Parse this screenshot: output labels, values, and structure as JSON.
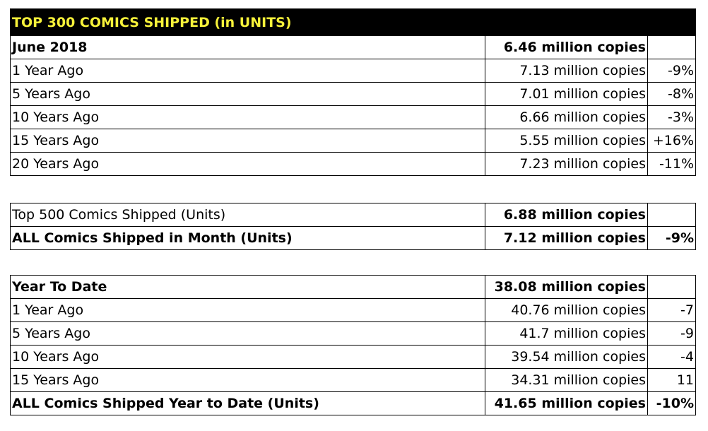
{
  "main_table": {
    "title": "TOP 300 COMICS SHIPPED (in UNITS)",
    "rows": [
      {
        "label": "June 2018",
        "value": "6.46 million copies",
        "change": ""
      },
      {
        "label": "1 Year Ago",
        "value": "7.13 million copies",
        "change": "-9%"
      },
      {
        "label": "5 Years Ago",
        "value": "7.01 million copies",
        "change": "-8%"
      },
      {
        "label": "10 Years Ago",
        "value": "6.66 million copies",
        "change": "-3%"
      },
      {
        "label": "15 Years Ago",
        "value": "5.55 million copies",
        "change": "+16%"
      },
      {
        "label": "20 Years Ago",
        "value": "7.23 million copies",
        "change": "-11%"
      }
    ]
  },
  "shipped_table": {
    "rows": [
      {
        "label": "Top 500 Comics Shipped (Units)",
        "value": "6.88 million copies",
        "change": ""
      },
      {
        "label": "ALL Comics Shipped in Month (Units)",
        "value": "7.12 million copies",
        "change": "-9%"
      }
    ]
  },
  "ytd_table": {
    "rows": [
      {
        "label": "Year To Date",
        "value": "38.08 million copies",
        "change": ""
      },
      {
        "label": "1 Year Ago",
        "value": "40.76 million copies",
        "change": "-7"
      },
      {
        "label": "5 Years Ago",
        "value": "41.7 million copies",
        "change": "-9"
      },
      {
        "label": "10 Years Ago",
        "value": "39.54 million copies",
        "change": "-4"
      },
      {
        "label": "15 Years Ago",
        "value": "34.31 million copies",
        "change": "11"
      },
      {
        "label": "ALL Comics Shipped Year to Date (Units)",
        "value": "41.65 million copies",
        "change": "-10%"
      }
    ]
  },
  "colors": {
    "title_background": "#000000",
    "title_text": "#f7f23a"
  }
}
